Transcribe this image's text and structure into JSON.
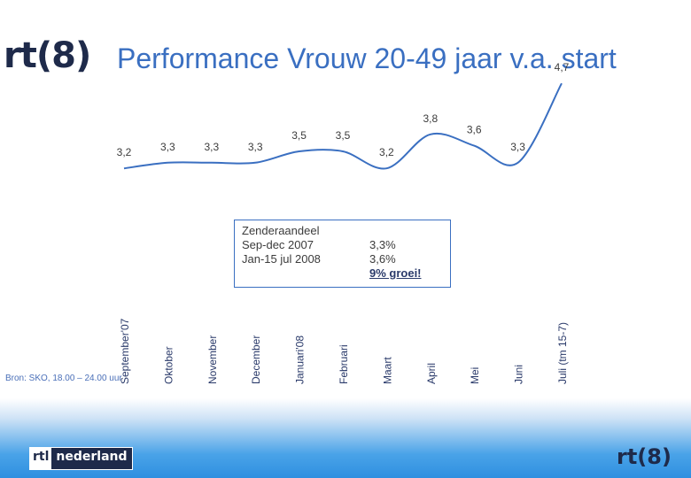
{
  "header": {
    "logo_text": "rt(8)",
    "title": "Performance Vrouw 20-49 jaar v.a. start"
  },
  "chart_data": {
    "type": "line",
    "title": "Performance Vrouw 20-49 jaar v.a. start",
    "categories": [
      "September'07",
      "Oktober",
      "November",
      "December",
      "Januari'08",
      "Februari",
      "Maart",
      "April",
      "Mei",
      "Juni",
      "Juli (tm 15-7)"
    ],
    "values": [
      3.2,
      3.3,
      3.3,
      3.3,
      3.5,
      3.5,
      3.2,
      3.8,
      3.6,
      3.3,
      4.7
    ],
    "value_labels": [
      "3,2",
      "3,3",
      "3,3",
      "3,3",
      "3,5",
      "3,5",
      "3,2",
      "3,8",
      "3,6",
      "3,3",
      "4,7"
    ],
    "ylim": [
      3.0,
      5.0
    ],
    "xlabel": "",
    "ylabel": "",
    "grid": false,
    "line_color": "#3a6fc1"
  },
  "infobox": {
    "heading": "Zenderaandeel",
    "row1_label": "Sep-dec 2007",
    "row1_value": "3,3%",
    "row2_label": "Jan-15 jul 2008",
    "row2_value": "3,6%",
    "growth": "9% groei!"
  },
  "source": "Bron: SKO, 18.00 – 24.00 uur",
  "footer": {
    "rtl_part": "rtl",
    "nederland_part": "nederland",
    "logo_text": "rt(8)"
  }
}
